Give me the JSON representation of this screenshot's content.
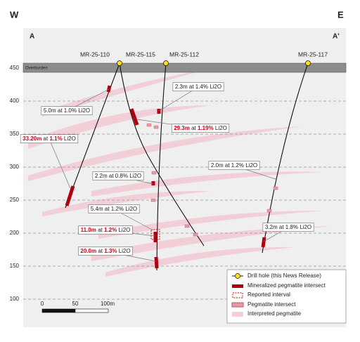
{
  "compass": {
    "west": "W",
    "east": "E"
  },
  "section": {
    "start": "A",
    "end": "A'"
  },
  "elevation_axis": {
    "ticks": [
      "450",
      "400",
      "350",
      "300",
      "250",
      "200",
      "150",
      "100"
    ]
  },
  "overburden": "Overburden",
  "drill_holes": [
    {
      "label": "MR-25-110"
    },
    {
      "label": "MR-25-115"
    },
    {
      "label": "MR-25-112"
    },
    {
      "label": "MR-25-117"
    }
  ],
  "intercepts": [
    {
      "text": "5.0m at 1.0% Li2O",
      "emphasis": false
    },
    {
      "text": "33.20m at 1.1% Li2O",
      "emphasis": true
    },
    {
      "text": "2.3m at 1.4% Li2O",
      "emphasis": false
    },
    {
      "text": "29.3m at 1.19% Li2O",
      "emphasis": true
    },
    {
      "text": "2.2m at 0.8% Li2O",
      "emphasis": false
    },
    {
      "text": "2.0m at 1.2% Li2O",
      "emphasis": false
    },
    {
      "text": "5.4m at 1.2% Li2O",
      "emphasis": false
    },
    {
      "text": "11.0m at 1.2% Li2O",
      "emphasis": true
    },
    {
      "text": "3.2m at 1.8% Li2O",
      "emphasis": false
    },
    {
      "text": "20.0m at 1.3% Li2O",
      "emphasis": true
    }
  ],
  "scale_bar": {
    "labels": [
      "0",
      "50",
      "100m"
    ]
  },
  "legend": {
    "items": [
      "Drill hole (this News Release)",
      "Mineralized pegmatite intersect",
      "Reported interval",
      "Pegmatite intersect",
      "Interpreted pegmatite"
    ]
  }
}
